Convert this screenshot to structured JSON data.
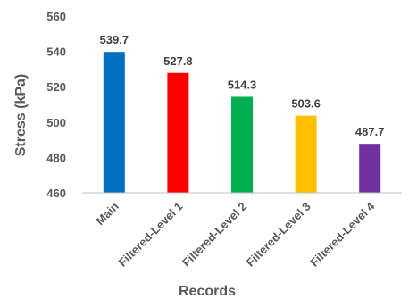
{
  "chart_data": {
    "type": "bar",
    "title": "",
    "xlabel": "Records",
    "ylabel": "Stress (kPa)",
    "categories": [
      "Main",
      "Filtered-Level 1",
      "Filtered-Level 2",
      "Filtered-Level 3",
      "Filtered-Level 4"
    ],
    "values": [
      539.7,
      527.8,
      514.3,
      503.6,
      487.7
    ],
    "data_labels": [
      "539.7",
      "527.8",
      "514.3",
      "503.6",
      "487.7"
    ],
    "colors": [
      "#0070C0",
      "#FF0000",
      "#00B050",
      "#FFC000",
      "#7030A0"
    ],
    "ylim": [
      460,
      560
    ],
    "yticks": [
      460,
      480,
      500,
      520,
      540,
      560
    ],
    "grid": false,
    "legend": "none"
  }
}
